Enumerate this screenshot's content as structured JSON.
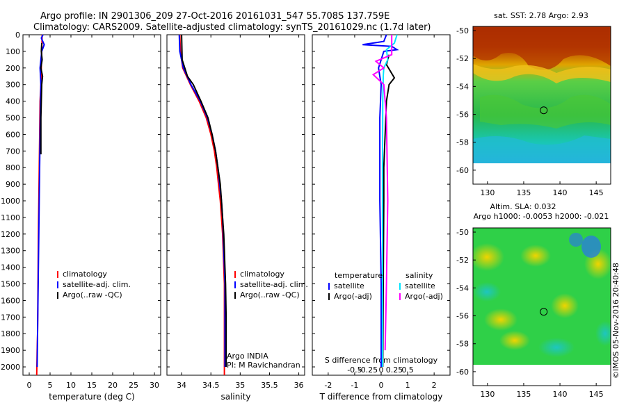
{
  "header": {
    "line1": "Argo profile: IN 2901306_209 27-Oct-2016 20161031_547 55.708S 137.759E",
    "line2": "Climatology: CARS2009. Satellite-adjusted climatology: synTS_20161029.nc (1.7d later)"
  },
  "colors": {
    "climatology": "#ff0000",
    "satellite": "#0000ff",
    "argo": "#000000",
    "sal_satellite": "#00e5ff",
    "sal_argo": "#ff00ff"
  },
  "chart_data": [
    {
      "type": "line",
      "name": "temperature-profile",
      "xlabel": "temperature (deg C)",
      "ylabel": "",
      "xlim": [
        -1.5,
        31.5
      ],
      "ylim": [
        2050,
        0
      ],
      "xticks": [
        0,
        5,
        10,
        15,
        20,
        25,
        30
      ],
      "yticks": [
        0,
        100,
        200,
        300,
        400,
        500,
        600,
        700,
        800,
        900,
        1000,
        1100,
        1200,
        1300,
        1400,
        1500,
        1600,
        1700,
        1800,
        1900,
        2000
      ],
      "legend": [
        "climatology",
        "satellite-adj. clim.",
        "Argo(..raw -QC)"
      ],
      "series": [
        {
          "name": "climatology",
          "color": "#ff0000",
          "points": [
            [
              3.1,
              0
            ],
            [
              3.0,
              100
            ],
            [
              2.9,
              200
            ],
            [
              2.8,
              300
            ],
            [
              2.6,
              400
            ],
            [
              2.5,
              600
            ],
            [
              2.4,
              800
            ],
            [
              2.3,
              1000
            ],
            [
              2.2,
              1200
            ],
            [
              2.1,
              1500
            ],
            [
              2.0,
              1800
            ],
            [
              1.9,
              1900
            ],
            [
              1.8,
              2050
            ]
          ]
        },
        {
          "name": "satellite-adj. clim.",
          "color": "#0000ff",
          "points": [
            [
              3.3,
              0
            ],
            [
              2.9,
              20
            ],
            [
              3.6,
              60
            ],
            [
              3.0,
              100
            ],
            [
              2.6,
              200
            ],
            [
              2.8,
              300
            ],
            [
              2.7,
              400
            ],
            [
              2.6,
              600
            ],
            [
              2.5,
              800
            ],
            [
              2.4,
              1000
            ],
            [
              2.3,
              1200
            ],
            [
              2.2,
              1400
            ],
            [
              2.1,
              1600
            ],
            [
              2.0,
              1800
            ],
            [
              1.9,
              2000
            ]
          ]
        },
        {
          "name": "Argo(..raw -QC)",
          "color": "#000000",
          "points": [
            [
              3.0,
              50
            ],
            [
              2.9,
              100
            ],
            [
              3.1,
              150
            ],
            [
              2.8,
              200
            ],
            [
              3.2,
              250
            ],
            [
              3.0,
              300
            ],
            [
              2.9,
              400
            ],
            [
              2.8,
              500
            ],
            [
              2.8,
              600
            ],
            [
              2.8,
              720
            ]
          ]
        }
      ]
    },
    {
      "type": "line",
      "name": "salinity-profile",
      "xlabel": "salinity",
      "ylabel": "",
      "xlim": [
        33.75,
        36.1
      ],
      "ylim": [
        2050,
        0
      ],
      "xticks": [
        34,
        34.5,
        35,
        35.5,
        36
      ],
      "legend": [
        "climatology",
        "satellite-adj. clim.",
        "Argo(..raw -QC)"
      ],
      "annotation": [
        "Argo INDIA",
        "PI: M Ravichandran"
      ],
      "series": [
        {
          "name": "climatology",
          "color": "#ff0000",
          "points": [
            [
              33.97,
              0
            ],
            [
              33.98,
              100
            ],
            [
              34.02,
              200
            ],
            [
              34.15,
              300
            ],
            [
              34.3,
              400
            ],
            [
              34.42,
              500
            ],
            [
              34.5,
              600
            ],
            [
              34.56,
              700
            ],
            [
              34.6,
              800
            ],
            [
              34.63,
              900
            ],
            [
              34.66,
              1000
            ],
            [
              34.68,
              1100
            ],
            [
              34.7,
              1200
            ],
            [
              34.71,
              1300
            ],
            [
              34.72,
              1400
            ],
            [
              34.73,
              1500
            ],
            [
              34.73,
              1700
            ],
            [
              34.73,
              2050
            ]
          ]
        },
        {
          "name": "satellite-adj. clim.",
          "color": "#0000ff",
          "points": [
            [
              33.96,
              0
            ],
            [
              33.97,
              100
            ],
            [
              34.03,
              200
            ],
            [
              34.16,
              300
            ],
            [
              34.32,
              400
            ],
            [
              34.44,
              500
            ],
            [
              34.52,
              600
            ],
            [
              34.58,
              700
            ],
            [
              34.62,
              800
            ],
            [
              34.65,
              900
            ],
            [
              34.68,
              1000
            ],
            [
              34.7,
              1100
            ],
            [
              34.71,
              1200
            ],
            [
              34.72,
              1300
            ],
            [
              34.73,
              1400
            ],
            [
              34.74,
              1500
            ],
            [
              34.74,
              1700
            ],
            [
              34.74,
              2000
            ]
          ]
        },
        {
          "name": "Argo(..raw -QC)",
          "color": "#000000",
          "points": [
            [
              34.0,
              0
            ],
            [
              34.01,
              150
            ],
            [
              34.1,
              250
            ],
            [
              34.2,
              300
            ],
            [
              34.33,
              400
            ],
            [
              34.45,
              500
            ],
            [
              34.52,
              600
            ],
            [
              34.58,
              700
            ],
            [
              34.62,
              800
            ],
            [
              34.66,
              900
            ],
            [
              34.68,
              1000
            ],
            [
              34.7,
              1100
            ],
            [
              34.72,
              1200
            ],
            [
              34.73,
              1300
            ],
            [
              34.74,
              1400
            ],
            [
              34.75,
              1500
            ],
            [
              34.76,
              1700
            ],
            [
              34.76,
              2000
            ]
          ]
        }
      ]
    },
    {
      "type": "line",
      "name": "difference-profile",
      "xlabel": "T difference from climatology",
      "xlabel_top": "S difference from climatology",
      "xlim": [
        -2.6,
        2.6
      ],
      "ylim": [
        2050,
        0
      ],
      "xticks": [
        -2,
        -1,
        0,
        1,
        2
      ],
      "xticks_s": [
        -0.5,
        -0.25,
        0,
        0.25,
        0.5
      ],
      "legend_headers": [
        "temperature",
        "salinity"
      ],
      "legend": [
        "satellite",
        "Argo(-adj)",
        "satellite",
        "Argo(-adj)"
      ],
      "series": [
        {
          "name": "temperature satellite",
          "color": "#0000ff",
          "points": [
            [
              0.2,
              0
            ],
            [
              0.1,
              40
            ],
            [
              -0.7,
              60
            ],
            [
              0.4,
              70
            ],
            [
              0.6,
              90
            ],
            [
              0.1,
              100
            ],
            [
              -0.1,
              200
            ],
            [
              0,
              300
            ],
            [
              -0.05,
              500
            ],
            [
              -0.05,
              800
            ],
            [
              -0.05,
              1000
            ],
            [
              0,
              1500
            ],
            [
              0,
              2000
            ]
          ]
        },
        {
          "name": "temperature Argo(-adj)",
          "color": "#000000",
          "points": [
            [
              0.3,
              120
            ],
            [
              0.2,
              180
            ],
            [
              0.5,
              260
            ],
            [
              0.3,
              300
            ],
            [
              0.2,
              400
            ],
            [
              0.15,
              600
            ],
            [
              0.1,
              800
            ],
            [
              0.1,
              1000
            ],
            [
              0.08,
              1500
            ],
            [
              0.06,
              2000
            ]
          ]
        },
        {
          "name": "salinity satellite",
          "color": "#00e5ff",
          "points": [
            [
              0.6,
              0
            ],
            [
              0.5,
              50
            ],
            [
              0.2,
              90
            ],
            [
              0.25,
              150
            ],
            [
              0.1,
              200
            ],
            [
              0.08,
              250
            ],
            [
              0.06,
              400
            ],
            [
              0.05,
              800
            ],
            [
              0.05,
              1500
            ],
            [
              0.05,
              2000
            ]
          ]
        },
        {
          "name": "salinity Argo(-adj)",
          "color": "#ff00ff",
          "points": [
            [
              0.4,
              0
            ],
            [
              0.4,
              120
            ],
            [
              -0.2,
              160
            ],
            [
              0.1,
              200
            ],
            [
              -0.3,
              240
            ],
            [
              0.1,
              300
            ],
            [
              0.2,
              500
            ],
            [
              0.25,
              1000
            ],
            [
              0.2,
              1500
            ],
            [
              0.15,
              1900
            ]
          ]
        }
      ]
    }
  ],
  "maps": {
    "sst": {
      "title": "sat. SST: 2.78 Argo: 2.93",
      "xticks": [
        "130",
        "135",
        "140",
        "145"
      ],
      "yticks": [
        "-50",
        "-52",
        "-54",
        "-56",
        "-58",
        "-60"
      ]
    },
    "sla": {
      "title1": "Altim. SLA: 0.032",
      "title2": "Argo h1000: -0.0053 h2000: -0.021",
      "xticks": [
        "130",
        "135",
        "140",
        "145"
      ],
      "yticks": [
        "-50",
        "-52",
        "-54",
        "-56",
        "-58",
        "-60"
      ]
    },
    "argo_position": {
      "lon": 137.759,
      "lat": -55.708
    },
    "lon_range": [
      128,
      147
    ],
    "lat_range": [
      -61,
      -49.7
    ]
  },
  "credit": "©IMOS 05-Nov-2016 20:40:48"
}
